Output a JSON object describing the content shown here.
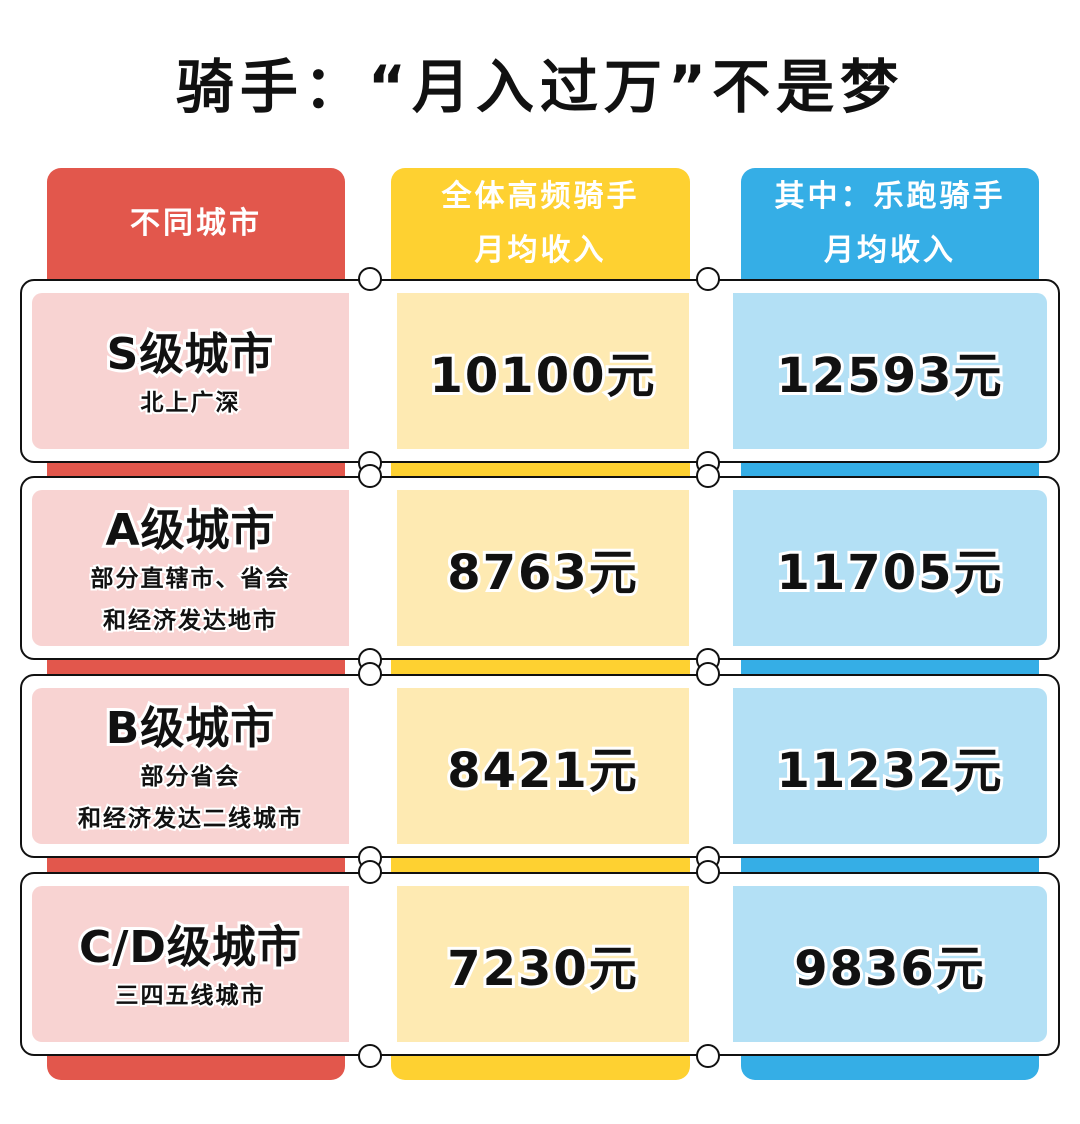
{
  "title": "骑手：“月入过万”不是梦",
  "headers": [
    "不同城市",
    "全体高频骑手\n月均收入",
    "其中：乐跑骑手\n月均收入"
  ],
  "header_lines": [
    [
      "不同城市"
    ],
    [
      "全体高频骑手",
      "月均收入"
    ],
    [
      "其中：乐跑骑手",
      "月均收入"
    ]
  ],
  "colors": {
    "red": "#e2574c",
    "yellow": "#fed131",
    "blue": "#35aee6"
  },
  "rows": [
    {
      "city": "S级城市",
      "desc": [
        "北上广深"
      ],
      "all": "10100元",
      "lepao": "12593元"
    },
    {
      "city": "A级城市",
      "desc": [
        "部分直辖市、省会",
        "和经济发达地市"
      ],
      "all": "8763元",
      "lepao": "11705元"
    },
    {
      "city": "B级城市",
      "desc": [
        "部分省会",
        "和经济发达二线城市"
      ],
      "all": "8421元",
      "lepao": "11232元"
    },
    {
      "city": "C/D级城市",
      "desc": [
        "三四五线城市"
      ],
      "all": "7230元",
      "lepao": "9836元"
    }
  ]
}
